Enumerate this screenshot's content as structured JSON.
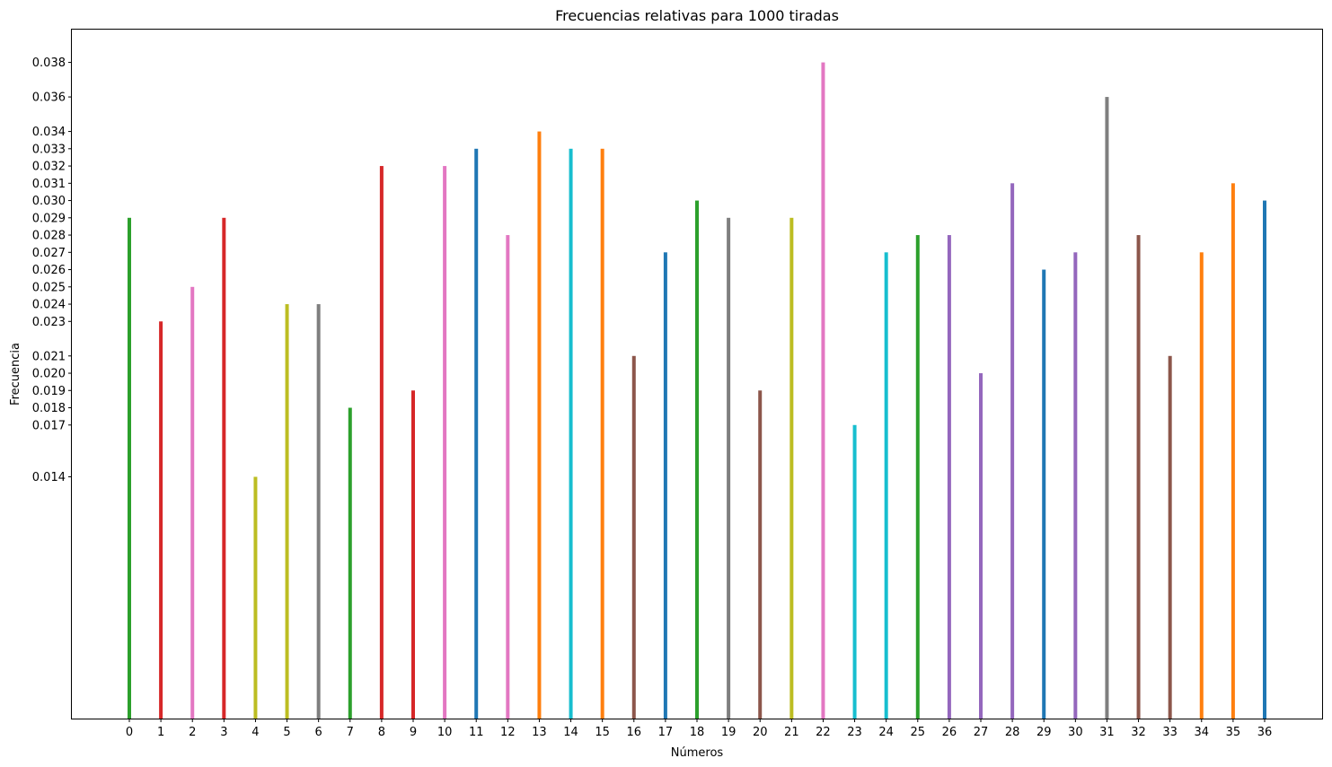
{
  "chart_data": {
    "type": "bar",
    "title": "Frecuencias relativas para 1000 tiradas",
    "xlabel": "Números",
    "ylabel": "Frecuencia",
    "ylim": [
      0,
      0.0399
    ],
    "categories": [
      "0",
      "1",
      "2",
      "3",
      "4",
      "5",
      "6",
      "7",
      "8",
      "9",
      "10",
      "11",
      "12",
      "13",
      "14",
      "15",
      "16",
      "17",
      "18",
      "19",
      "20",
      "21",
      "22",
      "23",
      "24",
      "25",
      "26",
      "27",
      "28",
      "29",
      "30",
      "31",
      "32",
      "33",
      "34",
      "35",
      "36"
    ],
    "values": [
      0.029,
      0.023,
      0.025,
      0.029,
      0.014,
      0.024,
      0.024,
      0.018,
      0.032,
      0.019,
      0.032,
      0.033,
      0.028,
      0.034,
      0.033,
      0.033,
      0.021,
      0.027,
      0.03,
      0.029,
      0.019,
      0.029,
      0.038,
      0.017,
      0.027,
      0.028,
      0.028,
      0.02,
      0.031,
      0.026,
      0.027,
      0.036,
      0.028,
      0.021,
      0.027,
      0.031,
      0.03
    ],
    "colors": [
      "#2ca02c",
      "#d62728",
      "#e377c2",
      "#d62728",
      "#bcbd22",
      "#bcbd22",
      "#7f7f7f",
      "#2ca02c",
      "#d62728",
      "#d62728",
      "#e377c2",
      "#1f77b4",
      "#e377c2",
      "#ff7f0e",
      "#17becf",
      "#ff7f0e",
      "#8c564b",
      "#1f77b4",
      "#2ca02c",
      "#7f7f7f",
      "#8c564b",
      "#bcbd22",
      "#e377c2",
      "#17becf",
      "#17becf",
      "#2ca02c",
      "#9467bd",
      "#9467bd",
      "#9467bd",
      "#1f77b4",
      "#9467bd",
      "#7f7f7f",
      "#8c564b",
      "#8c564b",
      "#ff7f0e",
      "#ff7f0e",
      "#1f77b4"
    ],
    "yticks": [
      "0.014",
      "0.017",
      "0.018",
      "0.019",
      "0.020",
      "0.021",
      "0.023",
      "0.024",
      "0.025",
      "0.026",
      "0.027",
      "0.028",
      "0.029",
      "0.030",
      "0.031",
      "0.032",
      "0.033",
      "0.034",
      "0.036",
      "0.038"
    ],
    "grid": false,
    "legend": "none"
  }
}
